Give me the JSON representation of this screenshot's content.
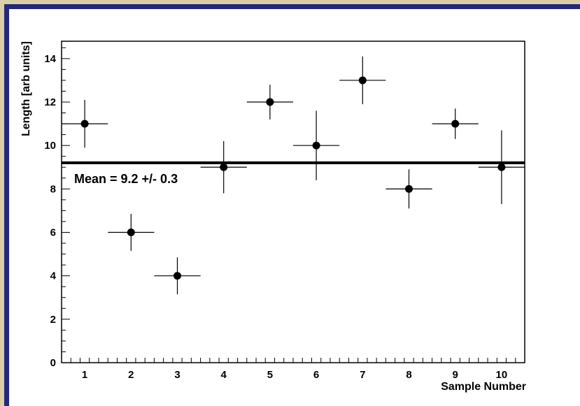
{
  "chart_data": {
    "type": "scatter",
    "title": "",
    "xlabel": "Sample Number",
    "ylabel": "Length [arb units]",
    "xlim": [
      0.5,
      10.5
    ],
    "ylim": [
      0,
      14.8
    ],
    "x_ticks": [
      "1",
      "2",
      "3",
      "4",
      "5",
      "6",
      "7",
      "8",
      "9",
      "10"
    ],
    "y_ticks": [
      "0",
      "2",
      "4",
      "6",
      "8",
      "10",
      "12",
      "14"
    ],
    "grid": false,
    "series": [
      {
        "x": [
          1,
          2,
          3,
          4,
          5,
          6,
          7,
          8,
          9,
          10
        ],
        "y": [
          11,
          6,
          4,
          9,
          12,
          10,
          13,
          8,
          11,
          9
        ],
        "x_err": [
          0.5,
          0.5,
          0.5,
          0.5,
          0.5,
          0.5,
          0.5,
          0.5,
          0.5,
          0.5
        ],
        "y_err": [
          1.1,
          0.85,
          0.85,
          1.2,
          0.8,
          1.6,
          1.1,
          0.9,
          0.7,
          1.7
        ]
      }
    ],
    "mean_line": {
      "y": 9.2
    },
    "annotation": "Mean = 9.2 +/- 0.3"
  },
  "colors": {
    "frame": "#23297a",
    "outer_background": "#d8cfa8",
    "plot_background": "#ffffff",
    "marker": "#000000"
  }
}
